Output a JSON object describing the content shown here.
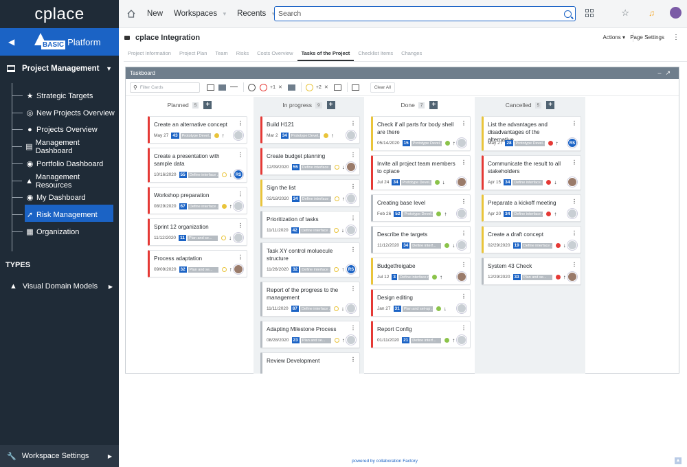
{
  "app": {
    "logo": "cplace",
    "platform_badge": "BASIC",
    "platform": "Platform"
  },
  "sidebar": {
    "section": "Project Management",
    "items": [
      {
        "label": "Strategic Targets",
        "icon": "star-icon"
      },
      {
        "label": "New Projects Overview",
        "icon": "target-icon"
      },
      {
        "label": "Projects Overview",
        "icon": "globe-icon",
        "active": true
      },
      {
        "label": "Management Dashboard",
        "icon": "dashboard-icon"
      },
      {
        "label": "Portfolio Dashboard",
        "icon": "palette-icon"
      },
      {
        "label": "Management Resources",
        "icon": "chart-icon"
      },
      {
        "label": "My Dashboard",
        "icon": "palette-icon"
      },
      {
        "label": "Risk Management",
        "icon": "lightning-icon"
      },
      {
        "label": "Organization",
        "icon": "building-icon"
      }
    ],
    "types_heading": "TYPES",
    "visual_domain": "Visual Domain Models",
    "workspace_settings": "Workspace Settings"
  },
  "topbar": {
    "new": "New",
    "workspaces": "Workspaces",
    "recents": "Recents",
    "search_placeholder": "Search"
  },
  "page": {
    "title": "cplace Integration",
    "actions": "Actions",
    "page_settings": "Page Settings"
  },
  "tabs": [
    "Project Information",
    "Project Plan",
    "Team",
    "Risks",
    "Costs Overview",
    "Tasks of the Project",
    "Checklist Items",
    "Changes"
  ],
  "taskboard": {
    "title": "Taskboard",
    "filter_placeholder": "Filter Cards",
    "plus1": "+1",
    "plus2": "+2",
    "clear_all": "Clear All",
    "columns": [
      {
        "name": "Planned",
        "count": "5"
      },
      {
        "name": "In progress",
        "count": "9"
      },
      {
        "name": "Done",
        "count": "7"
      },
      {
        "name": "Cancelled",
        "count": "5"
      }
    ],
    "cards": [
      [
        {
          "title": "Create an alternative concept",
          "date": "May 27",
          "num": "43",
          "tag": "Prototype Devel...",
          "status": "#e9c43a"
        },
        {
          "title": "Create a presentation with sample data",
          "date": "10/16/2020",
          "num": "55",
          "tag": "Define interface ...",
          "status": "",
          "av": "RS"
        },
        {
          "title": "Workshop preparation",
          "date": "08/29/2020",
          "num": "67",
          "tag": "Define interface ...",
          "status": "#e9c43a"
        },
        {
          "title": "Sprint 12 organization",
          "date": "11/12/2020",
          "num": "11",
          "tag": "Plan and se...",
          "status": ""
        },
        {
          "title": "Process adaptation",
          "date": "09/09/2020",
          "num": "32",
          "tag": "Plan and se...",
          "status": ""
        }
      ],
      [
        {
          "title": "Build H121",
          "date": "Mar 2",
          "num": "34",
          "tag": "Prototype Devel...",
          "status": "#e9c43a"
        },
        {
          "title": "Create budget planning",
          "date": "12/09/2020",
          "num": "55",
          "tag": "Define interface ...",
          "status": ""
        },
        {
          "title": "Sign the list",
          "date": "02/18/2020",
          "num": "34",
          "tag": "Define interface ...",
          "status": ""
        },
        {
          "title": "Prioritization of tasks",
          "date": "11/11/2020",
          "num": "42",
          "tag": "Define interface ...",
          "status": ""
        },
        {
          "title": "Task XY control moluecule structure",
          "date": "11/26/2020",
          "num": "32",
          "tag": "Define interface ...",
          "status": "",
          "av": "RS"
        },
        {
          "title": "Report of the progress to the management",
          "date": "11/11/2020",
          "num": "87",
          "tag": "Define interface ...",
          "status": ""
        },
        {
          "title": "Adapting Milestone Process",
          "date": "08/28/2020",
          "num": "23",
          "tag": "Plan and se...",
          "status": ""
        },
        {
          "title": "Review Development",
          "date": "",
          "num": "",
          "tag": "",
          "status": ""
        }
      ],
      [
        {
          "title": "Check if all parts for body shell are there",
          "date": "05/14/2020",
          "num": "15",
          "tag": "Prototype Devel...",
          "status": "#8bc34a"
        },
        {
          "title": "Invite all project team members to cplace",
          "date": "Jul 24",
          "num": "34",
          "tag": "Prototype Devel...",
          "status": "#8bc34a"
        },
        {
          "title": "Creating base level",
          "date": "Feb 26",
          "num": "52",
          "tag": "Prototype Devel...",
          "status": "#8bc34a"
        },
        {
          "title": "Describe the targets",
          "date": "11/12/2020",
          "num": "34",
          "tag": "Define interf...",
          "status": "#8bc34a"
        },
        {
          "title": "Budgetfreigabe",
          "date": "Jul 12",
          "num": "3",
          "tag": "Define interface re...",
          "status": "#8bc34a"
        },
        {
          "title": "Design editing",
          "date": "Jan 27",
          "num": "31",
          "tag": "Plan and set-up ...",
          "status": "#8bc34a"
        },
        {
          "title": "Report Config",
          "date": "01/11/2020",
          "num": "21",
          "tag": "Define interf...",
          "status": "#8bc34a"
        }
      ],
      [
        {
          "title": "List the advantages and disadvantages of the alternative...",
          "date": "May 27",
          "num": "28",
          "tag": "Prototype Devel...",
          "status": "#e53935",
          "av": "RS"
        },
        {
          "title": "Communicate the result to all stakeholders",
          "date": "Apr 15",
          "num": "34",
          "tag": "Define interface ...",
          "status": "#e53935"
        },
        {
          "title": "Preparate a kickoff meeting",
          "date": "Apr 20",
          "num": "34",
          "tag": "Define interface ...",
          "status": "#e53935"
        },
        {
          "title": "Create a draft concept",
          "date": "02/29/2020",
          "num": "19",
          "tag": "Define interface ...",
          "status": "#e53935"
        },
        {
          "title": "System 43 Check",
          "date": "12/29/2020",
          "num": "33",
          "tag": "Plan and se...",
          "status": "#e53935"
        }
      ]
    ]
  },
  "footer": "powered by collaboration Factory"
}
